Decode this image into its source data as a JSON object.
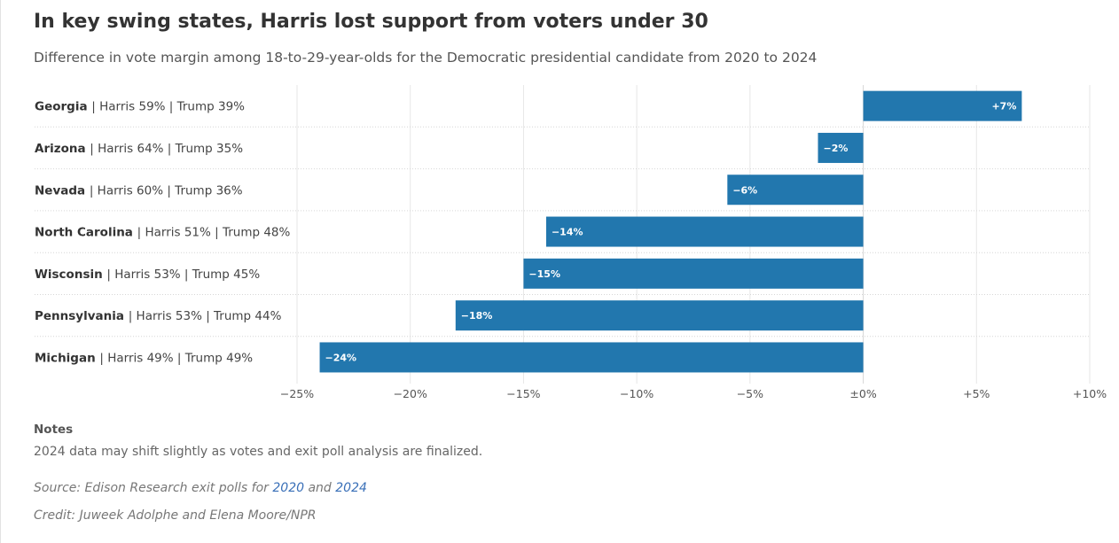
{
  "title": "In key swing states, Harris lost support from voters under 30",
  "subtitle": "Difference in vote margin among 18-to-29-year-olds for the Democratic presidential candidate from 2020 to 2024",
  "chart_data": {
    "type": "bar",
    "orientation": "horizontal",
    "categories": [
      "Georgia",
      "Arizona",
      "Nevada",
      "North Carolina",
      "Wisconsin",
      "Pennsylvania",
      "Michigan"
    ],
    "category_details": [
      "| Harris 59% | Trump 39%",
      "| Harris 64% | Trump 35%",
      "| Harris 60% | Trump 36%",
      "| Harris 51% | Trump 48%",
      "| Harris 53% | Trump 45%",
      "| Harris 53% | Trump 44%",
      "| Harris 49% | Trump 49%"
    ],
    "values": [
      7,
      -2,
      -6,
      -14,
      -15,
      -18,
      -24
    ],
    "value_labels": [
      "+7%",
      "−2%",
      "−6%",
      "−14%",
      "−15%",
      "−18%",
      "−24%"
    ],
    "xlim": [
      -25,
      10
    ],
    "ticks": [
      -25,
      -20,
      -15,
      -10,
      -5,
      0,
      5,
      10
    ],
    "tick_labels": [
      "−25%",
      "−20%",
      "−15%",
      "−10%",
      "−5%",
      "±0%",
      "+5%",
      "+10%"
    ],
    "grid": true,
    "bar_color": "#2277ae"
  },
  "notes": {
    "heading": "Notes",
    "text": "2024 data may shift slightly as votes and exit poll analysis are finalized."
  },
  "source": {
    "prefix": "Source: Edison Research exit polls for ",
    "link1": "2020",
    "middle": " and ",
    "link2": "2024"
  },
  "credit": "Credit: Juweek Adolphe and Elena Moore/NPR",
  "colors": {
    "bar": "#2277ae",
    "link": "#3a70b8",
    "grid": "#e6e6e6"
  }
}
